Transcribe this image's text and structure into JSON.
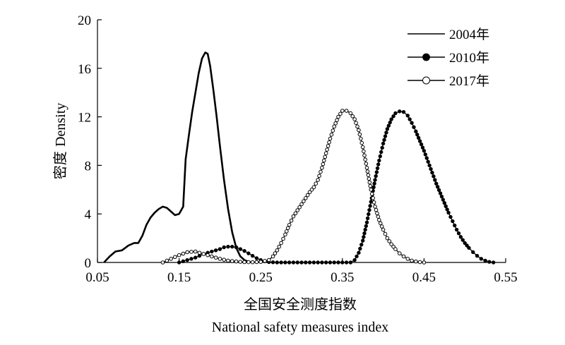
{
  "chart_data": {
    "type": "line",
    "xlabel_zh": "全国安全测度指数",
    "xlabel_en": "National safety measures index",
    "ylabel_zh": "密度",
    "ylabel_en": "Density",
    "xlim": [
      0.05,
      0.55
    ],
    "ylim": [
      0,
      20
    ],
    "xticks": [
      0.05,
      0.15,
      0.25,
      0.35,
      0.45,
      0.55
    ],
    "xtick_labels": [
      "0.05",
      "0.15",
      "0.25",
      "0.35",
      "0.45",
      "0.55"
    ],
    "yticks": [
      0,
      4,
      8,
      12,
      16,
      20
    ],
    "ytick_labels": [
      "0",
      "4",
      "8",
      "12",
      "16",
      "20"
    ],
    "grid": false,
    "legend_position": "top-right",
    "series": [
      {
        "name": "2004年",
        "marker": "none",
        "x": [
          0.058,
          0.065,
          0.072,
          0.08,
          0.088,
          0.095,
          0.1,
          0.105,
          0.11,
          0.115,
          0.12,
          0.125,
          0.13,
          0.135,
          0.14,
          0.145,
          0.15,
          0.155,
          0.158,
          0.162,
          0.166,
          0.17,
          0.174,
          0.178,
          0.182,
          0.185,
          0.188,
          0.192,
          0.196,
          0.2,
          0.205,
          0.21,
          0.215,
          0.22,
          0.225,
          0.23,
          0.235,
          0.24
        ],
        "values": [
          0,
          0.5,
          0.9,
          1.0,
          1.4,
          1.6,
          1.6,
          2.2,
          3.1,
          3.7,
          4.1,
          4.4,
          4.6,
          4.5,
          4.2,
          3.9,
          4.0,
          4.6,
          8.5,
          10.5,
          12.4,
          14.0,
          15.6,
          16.8,
          17.3,
          17.2,
          16.2,
          14.2,
          12.0,
          9.6,
          6.8,
          4.4,
          2.5,
          1.2,
          0.5,
          0.2,
          0.05,
          0
        ]
      },
      {
        "name": "2010年",
        "marker": "filled-circle",
        "x": [
          0.15,
          0.16,
          0.17,
          0.18,
          0.19,
          0.2,
          0.205,
          0.21,
          0.215,
          0.22,
          0.225,
          0.23,
          0.235,
          0.24,
          0.245,
          0.25,
          0.255,
          0.26,
          0.27,
          0.28,
          0.29,
          0.3,
          0.31,
          0.32,
          0.33,
          0.34,
          0.35,
          0.36,
          0.365,
          0.37,
          0.375,
          0.38,
          0.385,
          0.39,
          0.395,
          0.4,
          0.405,
          0.41,
          0.415,
          0.42,
          0.425,
          0.43,
          0.435,
          0.44,
          0.445,
          0.45,
          0.455,
          0.46,
          0.465,
          0.47,
          0.475,
          0.48,
          0.485,
          0.49,
          0.495,
          0.5,
          0.505,
          0.51,
          0.515,
          0.52,
          0.525,
          0.53,
          0.535
        ],
        "values": [
          0,
          0.2,
          0.4,
          0.7,
          0.9,
          1.1,
          1.25,
          1.3,
          1.3,
          1.25,
          1.1,
          0.95,
          0.75,
          0.55,
          0.35,
          0.2,
          0.1,
          0.03,
          0,
          0,
          0,
          0,
          0,
          0,
          0,
          0,
          0,
          0,
          0.2,
          0.8,
          1.8,
          3.3,
          5.0,
          6.8,
          8.4,
          9.8,
          11.0,
          11.8,
          12.3,
          12.45,
          12.4,
          12.1,
          11.5,
          10.8,
          10.0,
          9.2,
          8.3,
          7.4,
          6.5,
          5.7,
          4.9,
          4.1,
          3.4,
          2.7,
          2.1,
          1.6,
          1.2,
          0.85,
          0.55,
          0.3,
          0.15,
          0.05,
          0
        ]
      },
      {
        "name": "2017年",
        "marker": "open-circle",
        "x": [
          0.13,
          0.14,
          0.15,
          0.16,
          0.17,
          0.18,
          0.19,
          0.2,
          0.21,
          0.22,
          0.23,
          0.24,
          0.25,
          0.26,
          0.265,
          0.27,
          0.275,
          0.28,
          0.285,
          0.29,
          0.295,
          0.3,
          0.305,
          0.31,
          0.315,
          0.32,
          0.325,
          0.33,
          0.335,
          0.34,
          0.345,
          0.35,
          0.355,
          0.36,
          0.365,
          0.37,
          0.375,
          0.38,
          0.385,
          0.39,
          0.395,
          0.4,
          0.405,
          0.41,
          0.415,
          0.42,
          0.425,
          0.43,
          0.435,
          0.44,
          0.445,
          0.45
        ],
        "values": [
          0,
          0.3,
          0.6,
          0.85,
          0.9,
          0.7,
          0.5,
          0.3,
          0.15,
          0.08,
          0.03,
          0.02,
          0.05,
          0.2,
          0.5,
          1.0,
          1.6,
          2.3,
          3.1,
          3.8,
          4.3,
          4.8,
          5.3,
          5.8,
          6.2,
          6.8,
          7.8,
          9.0,
          10.2,
          11.2,
          12.0,
          12.5,
          12.5,
          12.3,
          11.8,
          10.9,
          9.5,
          7.8,
          6.0,
          4.6,
          3.5,
          2.7,
          2.0,
          1.5,
          1.1,
          0.75,
          0.5,
          0.3,
          0.15,
          0.08,
          0.03,
          0
        ]
      }
    ]
  }
}
